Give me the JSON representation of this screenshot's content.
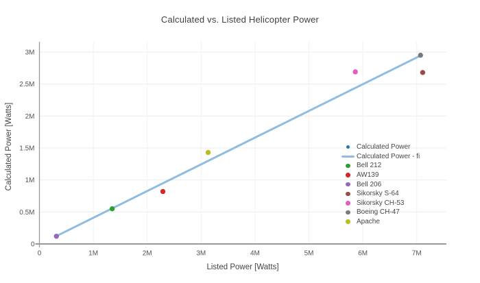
{
  "page": {
    "background": "#ffffff"
  },
  "chart_data": {
    "type": "scatter",
    "title": "Calculated vs. Listed Helicopter Power",
    "xlabel": "Listed Power [Watts]",
    "ylabel": "Calculated Power [Watts]",
    "xlim": [
      0,
      7550000
    ],
    "ylim": [
      0,
      3160000
    ],
    "grid": true,
    "legend_position": "inside-right",
    "x_ticks": {
      "values": [
        0,
        1000000,
        2000000,
        3000000,
        4000000,
        5000000,
        6000000,
        7000000
      ],
      "labels": [
        "0",
        "1M",
        "2M",
        "3M",
        "4M",
        "5M",
        "6M",
        "7M"
      ]
    },
    "y_ticks": {
      "values": [
        0,
        500000,
        1000000,
        1500000,
        2000000,
        2500000,
        3000000
      ],
      "labels": [
        "0",
        "0.5M",
        "1M",
        "1.5M",
        "2M",
        "2.5M",
        "3M"
      ]
    },
    "series": [
      {
        "name": "Calculated Power",
        "type": "scatter",
        "swatch": "dot-small",
        "color": "#2277b4",
        "points": []
      },
      {
        "name": "Calculated Power - fi",
        "type": "line",
        "swatch": "line",
        "color": "#90bcdf",
        "points": [
          [
            320000,
            125000
          ],
          [
            7060000,
            2940000
          ]
        ]
      },
      {
        "name": "Bell 212",
        "type": "scatter",
        "swatch": "dot",
        "color": "#2ca02c",
        "points": [
          [
            1350000,
            550000
          ]
        ]
      },
      {
        "name": "AW139",
        "type": "scatter",
        "swatch": "dot",
        "color": "#d62728",
        "points": [
          [
            2290000,
            820000
          ]
        ]
      },
      {
        "name": "Bell 206",
        "type": "scatter",
        "swatch": "dot",
        "color": "#9467bd",
        "points": [
          [
            315000,
            120000
          ]
        ]
      },
      {
        "name": "Sikorsky S-64",
        "type": "scatter",
        "swatch": "dot",
        "color": "#9a4b45",
        "points": [
          [
            7110000,
            2680000
          ]
        ]
      },
      {
        "name": "Sikorsky CH-53",
        "type": "scatter",
        "swatch": "dot",
        "color": "#e05fc0",
        "points": [
          [
            5860000,
            2690000
          ]
        ]
      },
      {
        "name": "Boeing CH-47",
        "type": "scatter",
        "swatch": "dot",
        "color": "#7a7a7a",
        "points": [
          [
            7070000,
            2950000
          ]
        ]
      },
      {
        "name": "Apache",
        "type": "scatter",
        "swatch": "dot",
        "color": "#bcbd22",
        "points": [
          [
            3130000,
            1430000
          ]
        ]
      }
    ],
    "styles": {
      "grid_color_h": "#ececec",
      "grid_color_v": "#f1f1f1",
      "axis_color": "#999999",
      "tick_text_color": "#545454",
      "title_color": "#3f3f3f",
      "axis_title_color": "#444444",
      "legend_text_color": "#474747",
      "line_width": 3,
      "point_radius": 3.7
    }
  }
}
